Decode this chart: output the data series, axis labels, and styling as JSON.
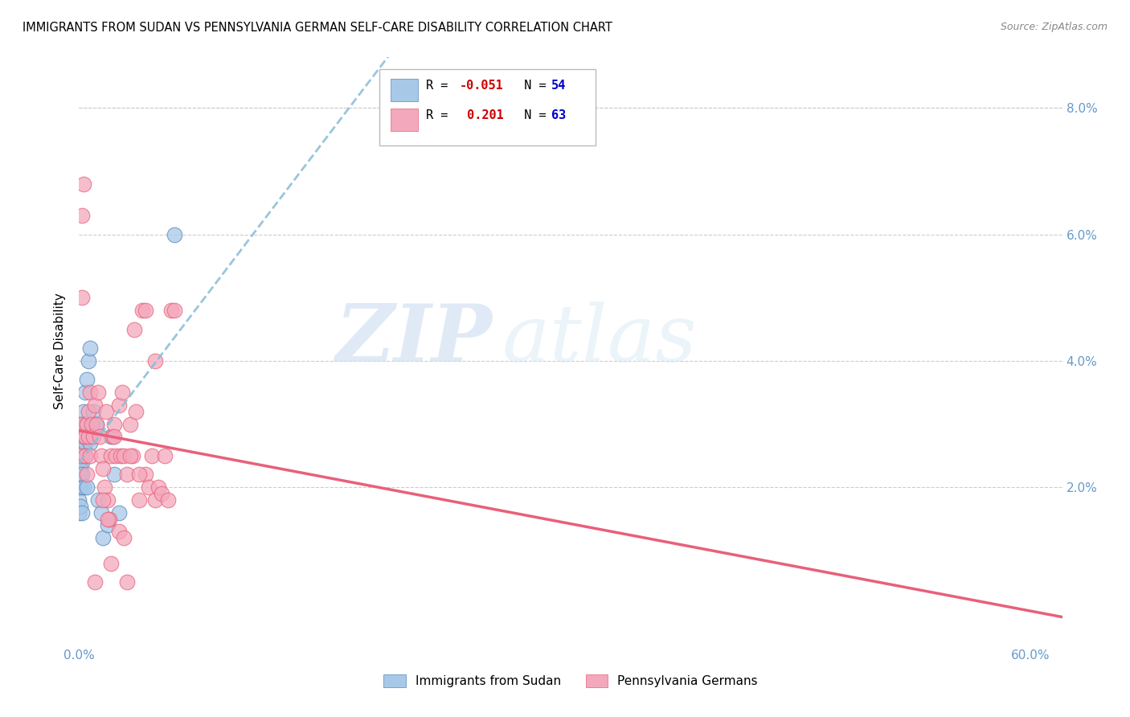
{
  "title": "IMMIGRANTS FROM SUDAN VS PENNSYLVANIA GERMAN SELF-CARE DISABILITY CORRELATION CHART",
  "source": "Source: ZipAtlas.com",
  "ylabel": "Self-Care Disability",
  "y_ticks": [
    0.0,
    0.02,
    0.04,
    0.06,
    0.08
  ],
  "y_tick_labels": [
    "",
    "2.0%",
    "4.0%",
    "6.0%",
    "8.0%"
  ],
  "xlim": [
    0.0,
    0.62
  ],
  "ylim": [
    -0.005,
    0.088
  ],
  "color_blue": "#A8C8E8",
  "color_pink": "#F4A8BC",
  "color_blue_line": "#5588BB",
  "color_pink_line": "#E8607A",
  "color_blue_dashed": "#88BBD8",
  "color_axis_tick": "#6699CC",
  "color_grid": "#CCCCCC",
  "watermark_zip": "ZIP",
  "watermark_atlas": "atlas",
  "blue_points_x": [
    0.0,
    0.0,
    0.0,
    0.0,
    0.0,
    0.0,
    0.0,
    0.0,
    0.001,
    0.001,
    0.001,
    0.001,
    0.001,
    0.001,
    0.001,
    0.001,
    0.001,
    0.001,
    0.002,
    0.002,
    0.002,
    0.002,
    0.002,
    0.002,
    0.002,
    0.002,
    0.003,
    0.003,
    0.003,
    0.003,
    0.003,
    0.004,
    0.004,
    0.004,
    0.004,
    0.005,
    0.005,
    0.005,
    0.006,
    0.006,
    0.007,
    0.007,
    0.008,
    0.009,
    0.01,
    0.011,
    0.012,
    0.014,
    0.015,
    0.018,
    0.02,
    0.022,
    0.025,
    0.06
  ],
  "blue_points_y": [
    0.026,
    0.024,
    0.023,
    0.022,
    0.021,
    0.02,
    0.018,
    0.016,
    0.03,
    0.028,
    0.027,
    0.026,
    0.025,
    0.024,
    0.023,
    0.022,
    0.02,
    0.017,
    0.03,
    0.028,
    0.027,
    0.026,
    0.025,
    0.024,
    0.022,
    0.016,
    0.032,
    0.03,
    0.028,
    0.026,
    0.02,
    0.035,
    0.03,
    0.027,
    0.025,
    0.037,
    0.03,
    0.02,
    0.04,
    0.028,
    0.042,
    0.027,
    0.03,
    0.032,
    0.03,
    0.03,
    0.018,
    0.016,
    0.012,
    0.014,
    0.028,
    0.022,
    0.016,
    0.06
  ],
  "pink_points_x": [
    0.001,
    0.001,
    0.002,
    0.002,
    0.003,
    0.003,
    0.004,
    0.004,
    0.005,
    0.005,
    0.006,
    0.006,
    0.007,
    0.007,
    0.008,
    0.009,
    0.01,
    0.011,
    0.012,
    0.013,
    0.014,
    0.015,
    0.016,
    0.017,
    0.018,
    0.019,
    0.02,
    0.021,
    0.022,
    0.023,
    0.025,
    0.026,
    0.027,
    0.028,
    0.03,
    0.032,
    0.034,
    0.036,
    0.038,
    0.04,
    0.042,
    0.044,
    0.046,
    0.048,
    0.05,
    0.052,
    0.054,
    0.056,
    0.058,
    0.06,
    0.015,
    0.025,
    0.035,
    0.018,
    0.028,
    0.038,
    0.048,
    0.022,
    0.032,
    0.042,
    0.01,
    0.02,
    0.03
  ],
  "pink_points_y": [
    0.03,
    0.025,
    0.063,
    0.05,
    0.068,
    0.028,
    0.028,
    0.025,
    0.03,
    0.022,
    0.032,
    0.028,
    0.035,
    0.025,
    0.03,
    0.028,
    0.033,
    0.03,
    0.035,
    0.028,
    0.025,
    0.023,
    0.02,
    0.032,
    0.018,
    0.015,
    0.025,
    0.028,
    0.03,
    0.025,
    0.033,
    0.025,
    0.035,
    0.025,
    0.022,
    0.03,
    0.025,
    0.032,
    0.018,
    0.048,
    0.022,
    0.02,
    0.025,
    0.018,
    0.02,
    0.019,
    0.025,
    0.018,
    0.048,
    0.048,
    0.018,
    0.013,
    0.045,
    0.015,
    0.012,
    0.022,
    0.04,
    0.028,
    0.025,
    0.048,
    0.005,
    0.008,
    0.005
  ],
  "legend_text_r1": "R = -0.051",
  "legend_text_n1": "N = 54",
  "legend_text_r2": "R =  0.201",
  "legend_text_n2": "N = 63",
  "legend_color_r1": "#CC0000",
  "legend_color_r2": "#CC0000",
  "legend_color_n": "#0000CC"
}
